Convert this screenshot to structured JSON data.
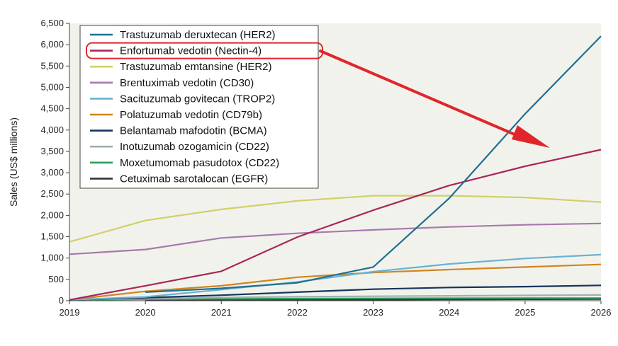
{
  "chart_data": {
    "type": "line",
    "title": "",
    "xlabel": "",
    "ylabel": "Sales (US$ millions)",
    "x": [
      2019,
      2020,
      2021,
      2022,
      2023,
      2024,
      2025,
      2026
    ],
    "xlim": [
      2019,
      2026
    ],
    "ylim": [
      0,
      6500
    ],
    "yticks": [
      0,
      500,
      1000,
      1500,
      2000,
      2500,
      3000,
      3500,
      4000,
      4500,
      5000,
      5500,
      6000,
      6500
    ],
    "ytick_labels": [
      "0",
      "500",
      "1,000",
      "1,500",
      "2,000",
      "2,500",
      "3,000",
      "3,500",
      "4,000",
      "4,500",
      "5,000",
      "5,500",
      "6,000",
      "6,500"
    ],
    "xtick_labels": [
      "2019",
      "2020",
      "2021",
      "2022",
      "2023",
      "2024",
      "2025",
      "2026"
    ],
    "grid": false,
    "legend_position": "top-left",
    "highlighted_series": "Enfortumab vedotin (Nectin-4)",
    "highlight_color": "#e0262b",
    "plot_background": "#f2f2ec",
    "series": [
      {
        "name": "Trastuzumab deruxtecan (HER2)",
        "color": "#1f6f92",
        "values": [
          null,
          200,
          290,
          420,
          790,
          2400,
          4380,
          6200
        ]
      },
      {
        "name": "Enfortumab vedotin (Nectin-4)",
        "color": "#a8275a",
        "values": [
          20,
          350,
          690,
          1490,
          2120,
          2700,
          3150,
          3540
        ]
      },
      {
        "name": "Trastuzumab emtansine (HER2)",
        "color": "#cfd16a",
        "values": [
          1380,
          1880,
          2140,
          2340,
          2460,
          2460,
          2420,
          2310
        ]
      },
      {
        "name": "Brentuximab vedotin (CD30)",
        "color": "#a779ad",
        "values": [
          1090,
          1200,
          1470,
          1580,
          1660,
          1730,
          1780,
          1810
        ]
      },
      {
        "name": "Sacituzumab govitecan (TROP2)",
        "color": "#6ab1d2",
        "values": [
          20,
          90,
          260,
          440,
          680,
          860,
          990,
          1080
        ]
      },
      {
        "name": "Polatuzumab vedotin (CD79b)",
        "color": "#d1841f",
        "values": [
          20,
          220,
          350,
          550,
          660,
          730,
          790,
          850
        ]
      },
      {
        "name": "Belantamab mafodotin (BCMA)",
        "color": "#16345c",
        "values": [
          20,
          70,
          130,
          200,
          270,
          310,
          330,
          360
        ]
      },
      {
        "name": "Inotuzumab ozogamicin (CD22)",
        "color": "#9fb0ad",
        "values": [
          20,
          50,
          75,
          95,
          105,
          115,
          125,
          135
        ]
      },
      {
        "name": "Moxetumomab pasudotox (CD22)",
        "color": "#2e9d5f",
        "values": [
          20,
          35,
          45,
          50,
          55,
          58,
          60,
          62
        ]
      },
      {
        "name": "Cetuximab sarotalocan (EGFR)",
        "color": "#333333",
        "values": [
          null,
          8,
          15,
          20,
          25,
          30,
          35,
          40
        ]
      }
    ]
  }
}
